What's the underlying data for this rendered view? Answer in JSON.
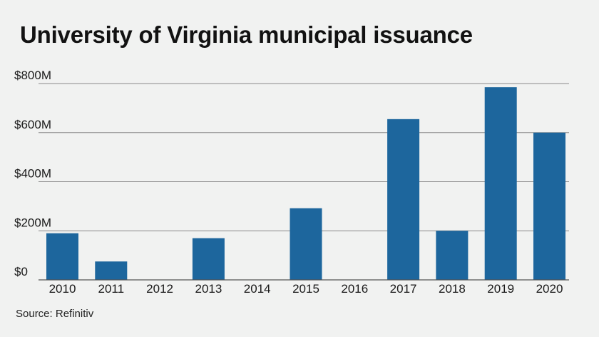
{
  "source": "Source: Refinitiv",
  "colors": {
    "bar": "#1d669d",
    "gridline": "#8a8a8a",
    "baseline": "#555555",
    "background": "#f1f2f1"
  },
  "chart_data": {
    "type": "bar",
    "title": "University of Virginia municipal issuance",
    "xlabel": "",
    "ylabel": "",
    "categories": [
      "2010",
      "2011",
      "2012",
      "2013",
      "2014",
      "2015",
      "2016",
      "2017",
      "2018",
      "2019",
      "2020"
    ],
    "values": [
      190,
      75,
      0,
      170,
      0,
      292,
      0,
      655,
      200,
      785,
      600
    ],
    "unit": "$M",
    "ylim": [
      0,
      800
    ],
    "yticks": [
      0,
      200,
      400,
      600,
      800
    ],
    "ytick_labels": [
      "$0",
      "$200M",
      "$400M",
      "$600M",
      "$800M"
    ],
    "grid": true,
    "legend": "none"
  }
}
